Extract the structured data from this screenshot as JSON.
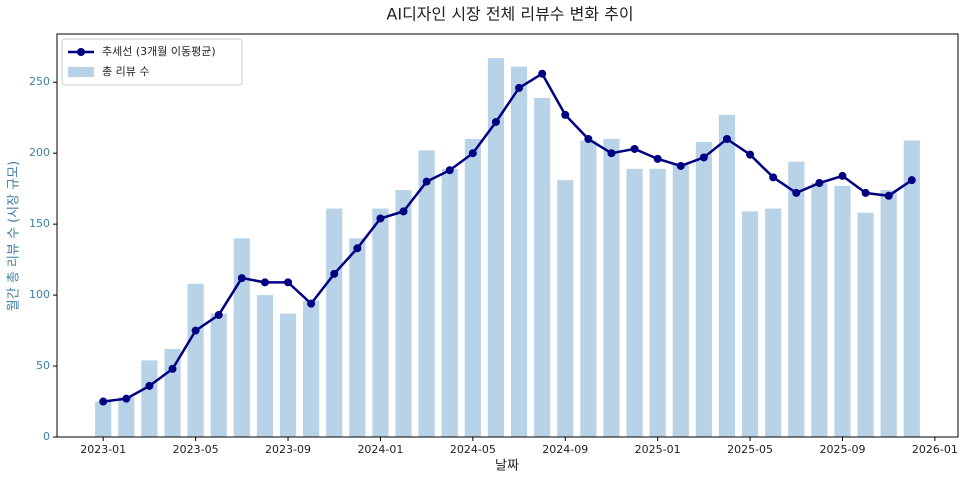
{
  "chart_data": {
    "type": "bar_line",
    "title": "AI디자인 시장 전체 리뷰수 변화 추이",
    "xlabel": "날짜",
    "ylabel": "월간 총 리뷰 수 (시장 규모)",
    "x": [
      "2023-01",
      "2023-02",
      "2023-03",
      "2023-04",
      "2023-05",
      "2023-06",
      "2023-07",
      "2023-08",
      "2023-09",
      "2023-10",
      "2023-11",
      "2023-12",
      "2024-01",
      "2024-02",
      "2024-03",
      "2024-04",
      "2024-05",
      "2024-06",
      "2024-07",
      "2024-08",
      "2024-09",
      "2024-10",
      "2024-11",
      "2024-12",
      "2025-01",
      "2025-02",
      "2025-03",
      "2025-04",
      "2025-05",
      "2025-06",
      "2025-07",
      "2025-08",
      "2025-09",
      "2025-10",
      "2025-11",
      "2025-12"
    ],
    "series": [
      {
        "name": "추세선 (3개월 이동평균)",
        "kind": "line",
        "color": "#000080",
        "values": [
          25,
          27,
          36,
          48,
          75,
          86,
          112,
          109,
          109,
          94,
          115,
          133,
          154,
          159,
          180,
          188,
          200,
          222,
          246,
          256,
          227,
          210,
          200,
          203,
          196,
          191,
          197,
          210,
          199,
          183,
          172,
          179,
          184,
          172,
          170,
          181
        ]
      },
      {
        "name": "총 리뷰 수",
        "kind": "bar",
        "color": "#b8d3e8",
        "values": [
          25,
          28,
          54,
          62,
          108,
          87,
          140,
          100,
          87,
          96,
          161,
          140,
          161,
          174,
          202,
          189,
          210,
          267,
          261,
          239,
          181,
          209,
          210,
          189,
          189,
          192,
          208,
          227,
          159,
          161,
          194,
          179,
          177,
          158,
          174,
          209
        ]
      }
    ],
    "xlim": [
      "2022-11",
      "2026-02"
    ],
    "xticks": [
      "2023-01",
      "2023-05",
      "2023-09",
      "2024-01",
      "2024-05",
      "2024-09",
      "2025-01",
      "2025-05",
      "2025-09",
      "2026-01"
    ],
    "ylim": [
      0,
      284
    ],
    "yticks": [
      0,
      50,
      100,
      150,
      200,
      250
    ],
    "legend": "upper left",
    "ylabel_color": "#3f7ea6"
  }
}
